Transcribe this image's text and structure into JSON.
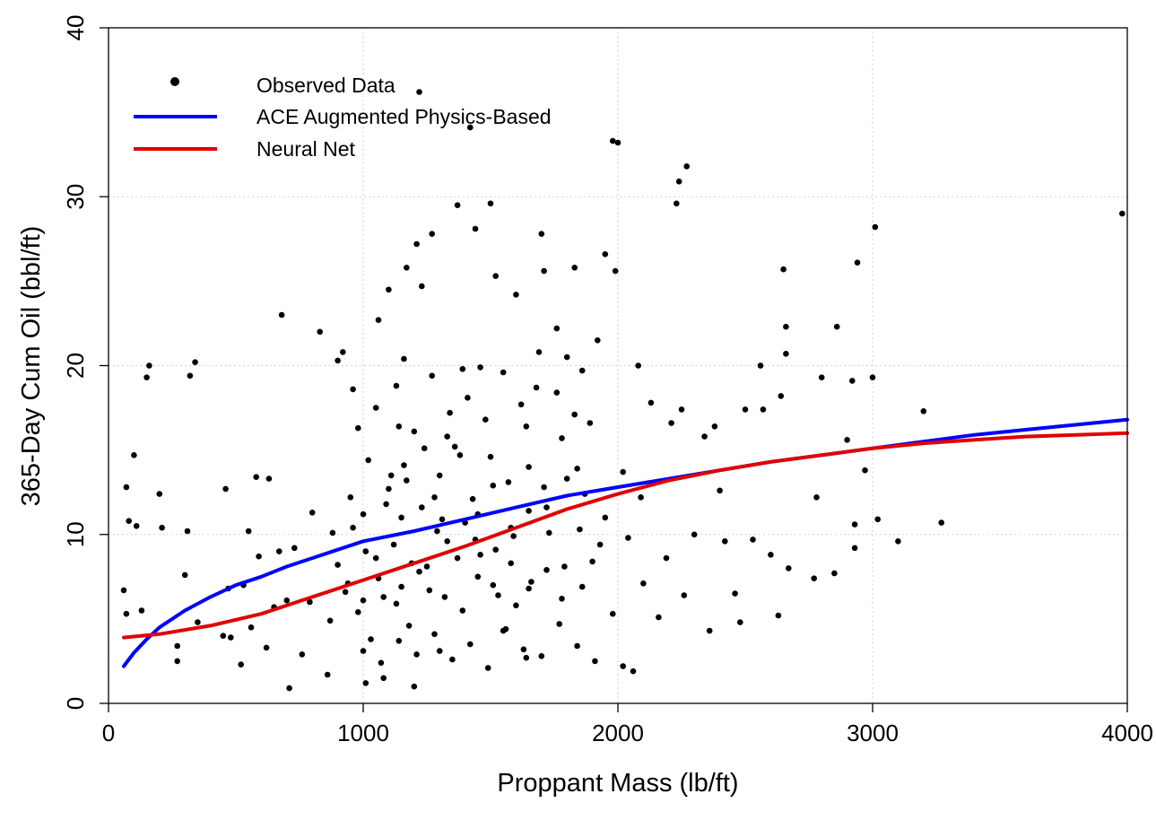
{
  "chart_data": {
    "type": "scatter",
    "title": "",
    "xlabel": "Proppant Mass (lb/ft)",
    "ylabel": "365-Day Cum Oil (bbl/ft)",
    "xlim": [
      0,
      4000
    ],
    "ylim": [
      0,
      40
    ],
    "x_ticks": [
      "0",
      "1000",
      "2000",
      "3000",
      "4000"
    ],
    "y_ticks": [
      "0",
      "10",
      "20",
      "30",
      "40"
    ],
    "grid": true,
    "legend_position": "top-left",
    "colors": {
      "observed": "#000000",
      "ace": "#0000ff",
      "neural": "#e00000",
      "grid": "#d3d3d3"
    },
    "series": [
      {
        "name": "Observed Data",
        "kind": "points",
        "points": [
          [
            60,
            6.7
          ],
          [
            70,
            5.3
          ],
          [
            70,
            12.8
          ],
          [
            80,
            10.8
          ],
          [
            100,
            14.7
          ],
          [
            110,
            10.5
          ],
          [
            130,
            5.5
          ],
          [
            150,
            19.3
          ],
          [
            160,
            20
          ],
          [
            200,
            12.4
          ],
          [
            210,
            10.4
          ],
          [
            270,
            3.4
          ],
          [
            270,
            2.5
          ],
          [
            300,
            7.6
          ],
          [
            310,
            10.2
          ],
          [
            320,
            19.4
          ],
          [
            340,
            20.2
          ],
          [
            350,
            4.8
          ],
          [
            450,
            4
          ],
          [
            460,
            12.7
          ],
          [
            470,
            6.8
          ],
          [
            480,
            3.9
          ],
          [
            520,
            2.3
          ],
          [
            530,
            7
          ],
          [
            550,
            10.2
          ],
          [
            560,
            4.5
          ],
          [
            580,
            13.4
          ],
          [
            590,
            8.7
          ],
          [
            620,
            3.3
          ],
          [
            630,
            13.3
          ],
          [
            650,
            5.7
          ],
          [
            670,
            9
          ],
          [
            680,
            23
          ],
          [
            700,
            6.1
          ],
          [
            710,
            0.9
          ],
          [
            730,
            9.2
          ],
          [
            760,
            2.9
          ],
          [
            790,
            6
          ],
          [
            800,
            11.3
          ],
          [
            830,
            22
          ],
          [
            860,
            1.7
          ],
          [
            880,
            10.1
          ],
          [
            900,
            20.3
          ],
          [
            920,
            20.8
          ],
          [
            960,
            18.6
          ],
          [
            980,
            16.3
          ],
          [
            1000,
            11.2
          ],
          [
            1010,
            1.2
          ],
          [
            1030,
            3.8
          ],
          [
            1060,
            22.7
          ],
          [
            1080,
            1.5
          ],
          [
            1100,
            24.5
          ],
          [
            1110,
            13.5
          ],
          [
            1140,
            16.4
          ],
          [
            1160,
            20.4
          ],
          [
            1170,
            25.8
          ],
          [
            1200,
            1
          ],
          [
            1210,
            27.2
          ],
          [
            1230,
            24.7
          ],
          [
            1270,
            27.8
          ],
          [
            1280,
            12.2
          ],
          [
            1300,
            3.1
          ],
          [
            1330,
            15.8
          ],
          [
            1370,
            29.5
          ],
          [
            1390,
            19.8
          ],
          [
            1420,
            34.1
          ],
          [
            1440,
            28.1
          ],
          [
            1460,
            19.9
          ],
          [
            1500,
            29.6
          ],
          [
            1520,
            25.3
          ],
          [
            1550,
            4.3
          ],
          [
            1600,
            24.2
          ],
          [
            1640,
            2.7
          ],
          [
            1680,
            18.7
          ],
          [
            1700,
            27.8
          ],
          [
            1710,
            25.6
          ],
          [
            1760,
            22.2
          ],
          [
            1800,
            20.5
          ],
          [
            1830,
            25.8
          ],
          [
            1860,
            19.7
          ],
          [
            1890,
            16.6
          ],
          [
            1920,
            21.5
          ],
          [
            1950,
            26.6
          ],
          [
            1980,
            33.3
          ],
          [
            2000,
            33.2
          ],
          [
            1990,
            25.6
          ],
          [
            2020,
            2.2
          ],
          [
            2040,
            9.8
          ],
          [
            2060,
            1.9
          ],
          [
            2080,
            20
          ],
          [
            2100,
            7.1
          ],
          [
            2130,
            17.8
          ],
          [
            2160,
            5.1
          ],
          [
            2190,
            8.6
          ],
          [
            2210,
            16.6
          ],
          [
            2230,
            29.6
          ],
          [
            2240,
            30.9
          ],
          [
            2250,
            17.4
          ],
          [
            2260,
            6.4
          ],
          [
            2270,
            31.8
          ],
          [
            2300,
            10
          ],
          [
            2340,
            15.8
          ],
          [
            2360,
            4.3
          ],
          [
            2380,
            16.4
          ],
          [
            2400,
            12.6
          ],
          [
            2420,
            9.6
          ],
          [
            2460,
            6.5
          ],
          [
            2480,
            4.8
          ],
          [
            2500,
            17.4
          ],
          [
            2530,
            9.7
          ],
          [
            2560,
            20
          ],
          [
            2570,
            17.4
          ],
          [
            2600,
            8.8
          ],
          [
            2630,
            5.2
          ],
          [
            2640,
            18.2
          ],
          [
            2650,
            25.7
          ],
          [
            2660,
            22.3
          ],
          [
            2660,
            20.7
          ],
          [
            2670,
            8
          ],
          [
            2770,
            7.4
          ],
          [
            2780,
            12.2
          ],
          [
            2800,
            19.3
          ],
          [
            2850,
            7.7
          ],
          [
            2860,
            22.3
          ],
          [
            2900,
            15.6
          ],
          [
            2920,
            19.1
          ],
          [
            2930,
            10.6
          ],
          [
            2930,
            9.2
          ],
          [
            2940,
            26.1
          ],
          [
            2970,
            13.8
          ],
          [
            3000,
            19.3
          ],
          [
            3010,
            28.2
          ],
          [
            3020,
            10.9
          ],
          [
            3100,
            9.6
          ],
          [
            3200,
            17.3
          ],
          [
            3270,
            10.7
          ],
          [
            3980,
            29
          ],
          [
            1220,
            36.2
          ],
          [
            1150,
            6.9
          ],
          [
            1050,
            8.6
          ],
          [
            980,
            5.4
          ],
          [
            940,
            7.1
          ],
          [
            1120,
            9.4
          ],
          [
            1180,
            4.6
          ],
          [
            1250,
            8.1
          ],
          [
            1320,
            6.3
          ],
          [
            1400,
            10.7
          ],
          [
            1450,
            7.5
          ],
          [
            1520,
            9.1
          ],
          [
            1600,
            5.8
          ],
          [
            1650,
            11.4
          ],
          [
            1720,
            7.9
          ],
          [
            1780,
            6.2
          ],
          [
            1850,
            10.3
          ],
          [
            1900,
            8.4
          ],
          [
            1980,
            5.3
          ],
          [
            1100,
            12.7
          ],
          [
            1160,
            14.1
          ],
          [
            1230,
            11.6
          ],
          [
            1300,
            13.5
          ],
          [
            1360,
            15.2
          ],
          [
            1430,
            12.1
          ],
          [
            1500,
            14.6
          ],
          [
            1570,
            13.1
          ],
          [
            1640,
            16.4
          ],
          [
            1710,
            12.8
          ],
          [
            1780,
            15.7
          ],
          [
            1840,
            13.9
          ],
          [
            1050,
            17.5
          ],
          [
            1130,
            18.8
          ],
          [
            1200,
            16.1
          ],
          [
            1270,
            19.4
          ],
          [
            1340,
            17.2
          ],
          [
            1410,
            18.1
          ],
          [
            1480,
            16.8
          ],
          [
            1550,
            19.6
          ],
          [
            1620,
            17.7
          ],
          [
            1690,
            20.8
          ],
          [
            1760,
            18.4
          ],
          [
            1830,
            17.1
          ],
          [
            1000,
            3.1
          ],
          [
            1070,
            2.4
          ],
          [
            1140,
            3.7
          ],
          [
            1210,
            2.9
          ],
          [
            1280,
            4.1
          ],
          [
            1350,
            2.6
          ],
          [
            1420,
            3.5
          ],
          [
            1490,
            2.1
          ],
          [
            1560,
            4.4
          ],
          [
            1630,
            3.2
          ],
          [
            1700,
            2.8
          ],
          [
            1770,
            4.7
          ],
          [
            1840,
            3.4
          ],
          [
            1910,
            2.5
          ],
          [
            1000,
            6.1
          ],
          [
            1060,
            7.4
          ],
          [
            1130,
            5.9
          ],
          [
            1190,
            8.3
          ],
          [
            1260,
            6.7
          ],
          [
            1330,
            9.6
          ],
          [
            1390,
            5.5
          ],
          [
            1460,
            8.8
          ],
          [
            1530,
            6.4
          ],
          [
            1590,
            9.9
          ],
          [
            1660,
            7.2
          ],
          [
            1730,
            10.1
          ],
          [
            1790,
            8.1
          ],
          [
            1860,
            6.9
          ],
          [
            1930,
            9.4
          ],
          [
            950,
            12.2
          ],
          [
            1020,
            14.4
          ],
          [
            1090,
            11.8
          ],
          [
            1170,
            13.2
          ],
          [
            1240,
            15.1
          ],
          [
            1310,
            10.9
          ],
          [
            1380,
            14.7
          ],
          [
            1450,
            11.2
          ],
          [
            1510,
            12.9
          ],
          [
            1580,
            10.4
          ],
          [
            1650,
            14
          ],
          [
            1720,
            11.6
          ],
          [
            1800,
            13.3
          ],
          [
            1870,
            12.4
          ],
          [
            1950,
            11
          ],
          [
            2020,
            13.7
          ],
          [
            2090,
            12.2
          ],
          [
            870,
            4.9
          ],
          [
            900,
            8.2
          ],
          [
            930,
            6.6
          ],
          [
            960,
            10.4
          ],
          [
            1010,
            9
          ],
          [
            1080,
            6.3
          ],
          [
            1150,
            11
          ],
          [
            1220,
            7.8
          ],
          [
            1290,
            10.2
          ],
          [
            1370,
            8.6
          ],
          [
            1440,
            9.7
          ],
          [
            1510,
            7
          ],
          [
            1580,
            8.3
          ],
          [
            1650,
            6.8
          ]
        ]
      },
      {
        "name": "ACE Augmented Physics-Based",
        "kind": "line",
        "points": [
          [
            60,
            2.2
          ],
          [
            100,
            3
          ],
          [
            150,
            3.8
          ],
          [
            200,
            4.5
          ],
          [
            300,
            5.5
          ],
          [
            400,
            6.3
          ],
          [
            500,
            7
          ],
          [
            600,
            7.5
          ],
          [
            700,
            8.1
          ],
          [
            800,
            8.6
          ],
          [
            900,
            9.1
          ],
          [
            1000,
            9.6
          ],
          [
            1200,
            10.2
          ],
          [
            1400,
            10.9
          ],
          [
            1600,
            11.6
          ],
          [
            1800,
            12.3
          ],
          [
            2000,
            12.8
          ],
          [
            2200,
            13.3
          ],
          [
            2400,
            13.8
          ],
          [
            2600,
            14.3
          ],
          [
            2800,
            14.7
          ],
          [
            3000,
            15.1
          ],
          [
            3200,
            15.5
          ],
          [
            3400,
            15.9
          ],
          [
            3600,
            16.2
          ],
          [
            3800,
            16.5
          ],
          [
            4000,
            16.8
          ]
        ]
      },
      {
        "name": "Neural Net",
        "kind": "line",
        "points": [
          [
            60,
            3.9
          ],
          [
            200,
            4.1
          ],
          [
            400,
            4.6
          ],
          [
            600,
            5.3
          ],
          [
            800,
            6.3
          ],
          [
            1000,
            7.3
          ],
          [
            1200,
            8.3
          ],
          [
            1400,
            9.3
          ],
          [
            1600,
            10.4
          ],
          [
            1800,
            11.5
          ],
          [
            2000,
            12.4
          ],
          [
            2200,
            13.2
          ],
          [
            2400,
            13.8
          ],
          [
            2600,
            14.3
          ],
          [
            2800,
            14.7
          ],
          [
            3000,
            15.1
          ],
          [
            3200,
            15.4
          ],
          [
            3400,
            15.6
          ],
          [
            3600,
            15.8
          ],
          [
            3800,
            15.9
          ],
          [
            4000,
            16
          ]
        ]
      }
    ]
  }
}
